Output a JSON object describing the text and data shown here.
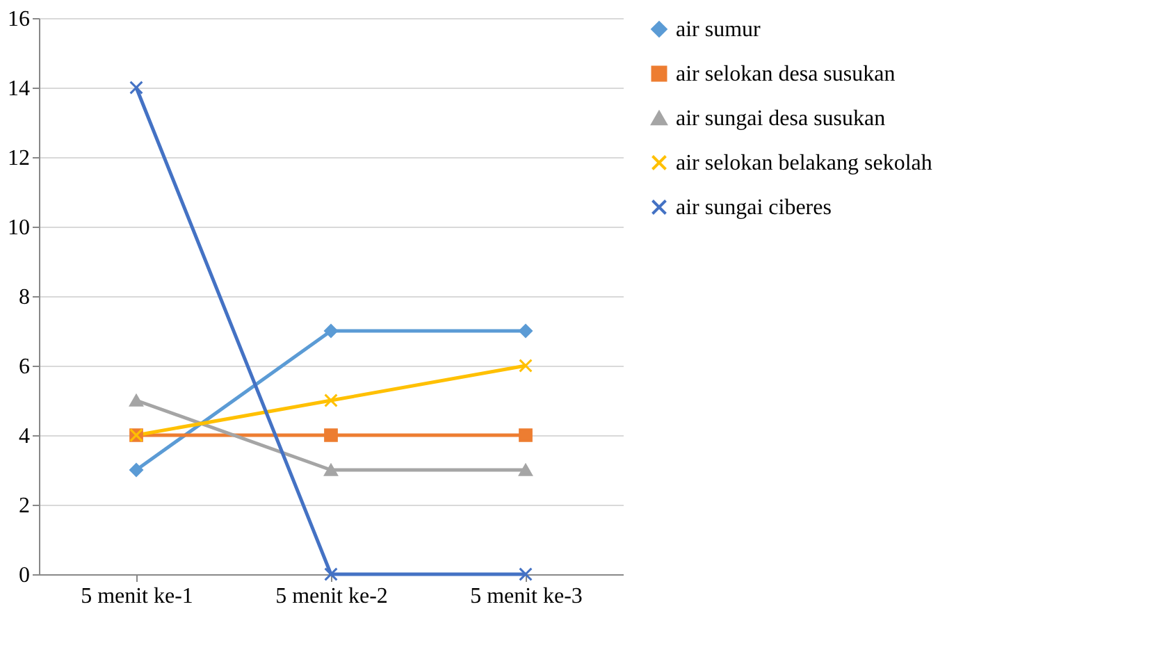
{
  "chart_data": {
    "type": "line",
    "categories": [
      "5 menit ke-1",
      "5 menit ke-2",
      "5 menit ke-3"
    ],
    "ylim": [
      0,
      16
    ],
    "yticks": [
      0,
      2,
      4,
      6,
      8,
      10,
      12,
      14,
      16
    ],
    "grid": "y",
    "legend": "right",
    "line_style": "solid",
    "series": [
      {
        "name": "air sumur",
        "color": "#5b9bd5",
        "marker": "diamond",
        "values": [
          3,
          7,
          7
        ]
      },
      {
        "name": "air selokan desa susukan",
        "color": "#ed7d31",
        "marker": "square",
        "values": [
          4,
          4,
          4
        ]
      },
      {
        "name": "air sungai desa susukan",
        "color": "#a5a5a5",
        "marker": "triangle",
        "values": [
          5,
          3,
          3
        ]
      },
      {
        "name": "air selokan belakang sekolah",
        "color": "#ffc000",
        "marker": "cross",
        "values": [
          4,
          5,
          6
        ]
      },
      {
        "name": "air sungai ciberes",
        "color": "#4472c4",
        "marker": "cross",
        "values": [
          14,
          0,
          0
        ]
      }
    ]
  }
}
